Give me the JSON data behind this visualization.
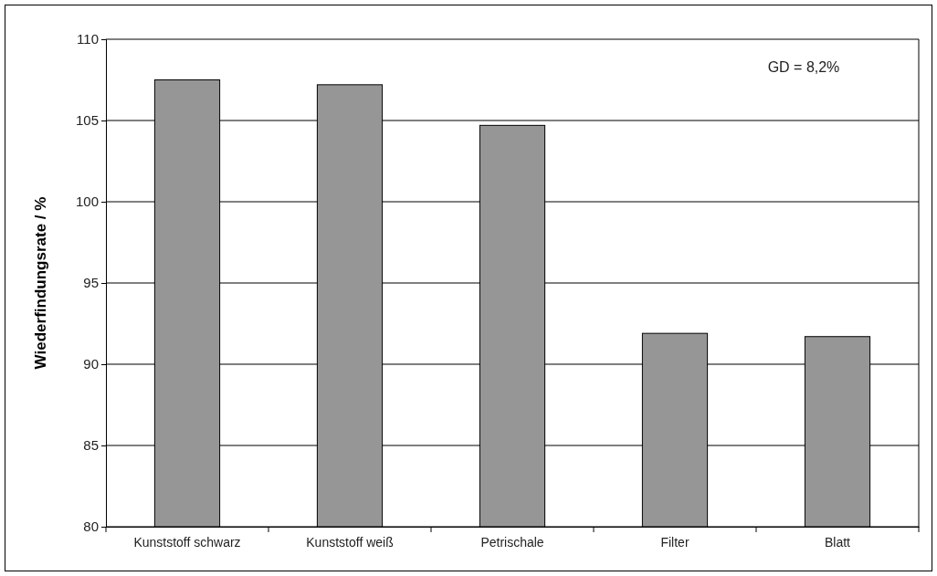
{
  "chart_data": {
    "type": "bar",
    "ylabel": "Wiederfindungsrate / %",
    "categories": [
      "Kunststoff schwarz",
      "Kunststoff weiß",
      "Petrischale",
      "Filter",
      "Blatt"
    ],
    "values": [
      107.5,
      107.2,
      104.7,
      91.9,
      91.7
    ],
    "color": "#969696",
    "ylim": [
      80,
      110
    ],
    "yticks": [
      80,
      85,
      90,
      95,
      100,
      105,
      110
    ],
    "grid": "y",
    "annotations": [
      "GD = 8,2%"
    ]
  }
}
